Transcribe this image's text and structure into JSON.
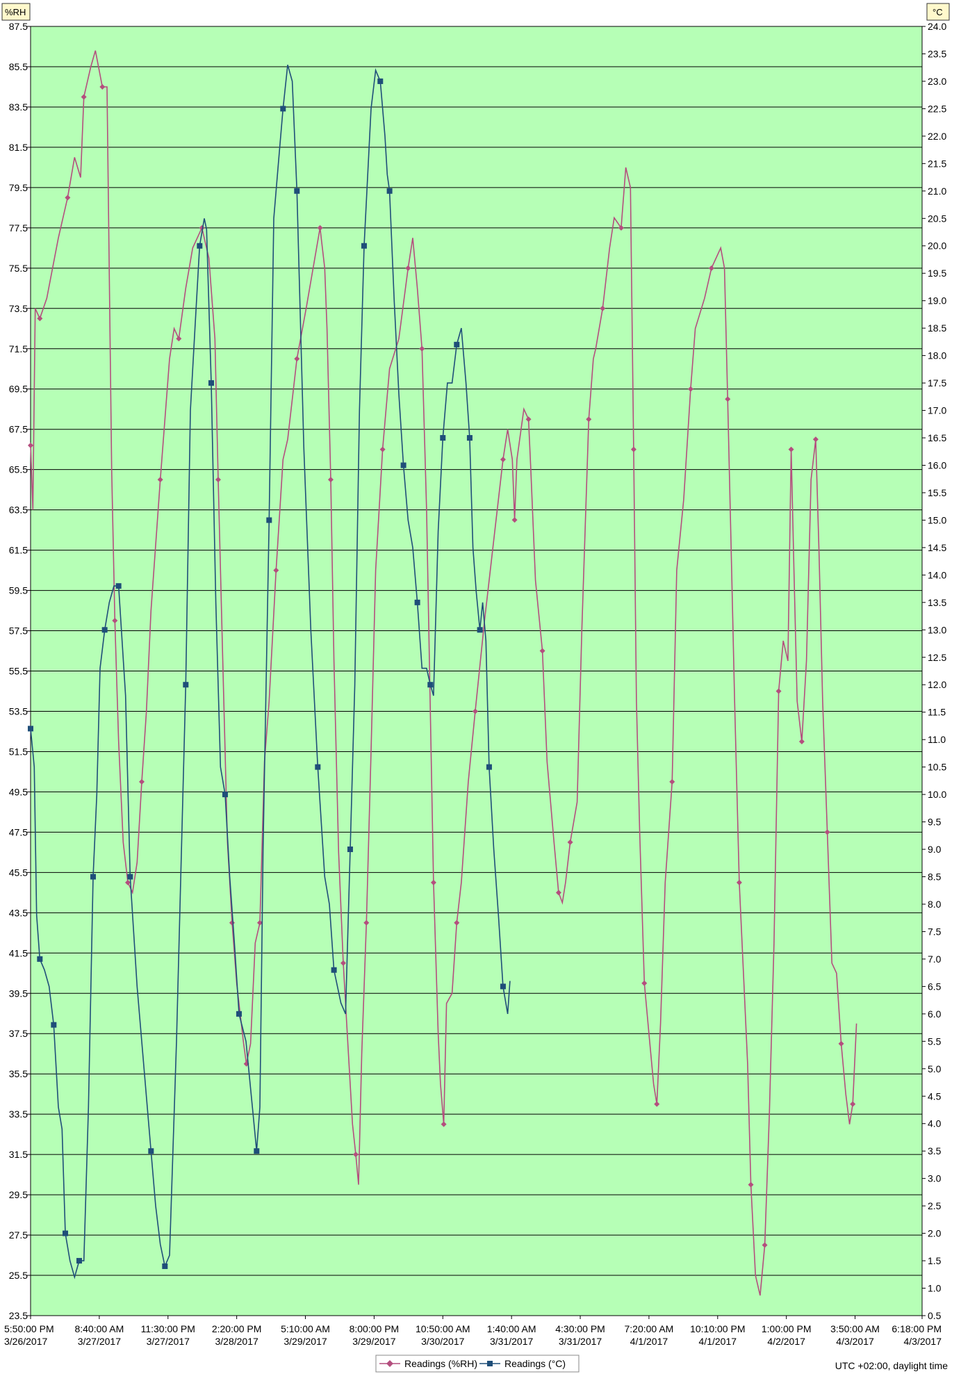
{
  "chart_data": {
    "type": "line",
    "left_axis": {
      "unit_label": "%RH",
      "min": 23.5,
      "max": 87.5,
      "step": 2,
      "ticks": [
        "87.5",
        "85.5",
        "83.5",
        "81.5",
        "79.5",
        "77.5",
        "75.5",
        "73.5",
        "71.5",
        "69.5",
        "67.5",
        "65.5",
        "63.5",
        "61.5",
        "59.5",
        "57.5",
        "55.5",
        "53.5",
        "51.5",
        "49.5",
        "47.5",
        "45.5",
        "43.5",
        "41.5",
        "39.5",
        "37.5",
        "35.5",
        "33.5",
        "31.5",
        "29.5",
        "27.5",
        "25.5",
        "23.5"
      ]
    },
    "right_axis": {
      "unit_label": "°C",
      "min": 0.5,
      "max": 24.0,
      "step": 0.5,
      "ticks": [
        "24.0",
        "23.5",
        "23.0",
        "22.5",
        "22.0",
        "21.5",
        "21.0",
        "20.5",
        "20.0",
        "19.5",
        "19.0",
        "18.5",
        "18.0",
        "17.5",
        "17.0",
        "16.5",
        "16.0",
        "15.5",
        "15.0",
        "14.5",
        "14.0",
        "13.5",
        "13.0",
        "12.5",
        "12.0",
        "11.5",
        "11.0",
        "10.5",
        "10.0",
        "9.5",
        "9.0",
        "8.5",
        "8.0",
        "7.5",
        "7.0",
        "6.5",
        "6.0",
        "5.5",
        "5.0",
        "4.5",
        "4.0",
        "3.5",
        "3.0",
        "2.5",
        "2.0",
        "1.5",
        "1.0",
        "0.5"
      ]
    },
    "x_axis": {
      "start": "3/26/2017 5:50:00 PM",
      "end": "4/3/2017 6:18:00 PM",
      "ticks": [
        {
          "time": "5:50:00 PM",
          "date": "3/26/2017",
          "hours": 0
        },
        {
          "time": "8:40:00 AM",
          "date": "3/27/2017",
          "hours": 14.833
        },
        {
          "time": "11:30:00 PM",
          "date": "3/27/2017",
          "hours": 29.667
        },
        {
          "time": "2:20:00 PM",
          "date": "3/28/2017",
          "hours": 44.5
        },
        {
          "time": "5:10:00 AM",
          "date": "3/29/2017",
          "hours": 59.333
        },
        {
          "time": "8:00:00 PM",
          "date": "3/29/2017",
          "hours": 74.167
        },
        {
          "time": "10:50:00 AM",
          "date": "3/30/2017",
          "hours": 89
        },
        {
          "time": "1:40:00 AM",
          "date": "3/31/2017",
          "hours": 103.833
        },
        {
          "time": "4:30:00 PM",
          "date": "3/31/2017",
          "hours": 118.667
        },
        {
          "time": "7:20:00 AM",
          "date": "4/1/2017",
          "hours": 133.5
        },
        {
          "time": "10:10:00 PM",
          "date": "4/1/2017",
          "hours": 148.333
        },
        {
          "time": "1:00:00 PM",
          "date": "4/2/2017",
          "hours": 163.167
        },
        {
          "time": "3:50:00 AM",
          "date": "4/3/2017",
          "hours": 178
        },
        {
          "time": "6:18:00 PM",
          "date": "4/3/2017",
          "hours": 192.467
        }
      ]
    },
    "grid": "horizontal",
    "series": [
      {
        "name": "Readings (%RH)",
        "axis": "left",
        "color": "#b44e7e",
        "marker": "diamond",
        "points": [
          [
            0,
            66.7
          ],
          [
            0.5,
            63.5
          ],
          [
            1,
            73.5
          ],
          [
            2,
            73
          ],
          [
            3.5,
            74
          ],
          [
            6,
            77
          ],
          [
            8,
            79
          ],
          [
            9.5,
            81
          ],
          [
            10.8,
            80
          ],
          [
            11.5,
            84
          ],
          [
            13,
            85.5
          ],
          [
            14,
            86.3
          ],
          [
            15.5,
            84.5
          ],
          [
            16.5,
            84.5
          ],
          [
            17.5,
            65.5
          ],
          [
            18.2,
            58
          ],
          [
            19,
            52
          ],
          [
            20,
            47
          ],
          [
            21,
            45
          ],
          [
            22,
            44.5
          ],
          [
            23,
            46
          ],
          [
            24,
            50
          ],
          [
            25,
            53.5
          ],
          [
            26,
            58.5
          ],
          [
            28,
            65
          ],
          [
            30,
            71
          ],
          [
            31,
            72.5
          ],
          [
            32,
            72
          ],
          [
            33.5,
            74.5
          ],
          [
            35,
            76.5
          ],
          [
            37,
            77.5
          ],
          [
            38.5,
            76
          ],
          [
            39.8,
            72
          ],
          [
            40.5,
            65
          ],
          [
            41.5,
            56
          ],
          [
            42.5,
            47
          ],
          [
            43.5,
            43
          ],
          [
            44.5,
            40
          ],
          [
            46,
            37
          ],
          [
            46.6,
            36
          ],
          [
            47.5,
            37
          ],
          [
            48.5,
            42
          ],
          [
            49.5,
            43
          ],
          [
            50.5,
            51
          ],
          [
            51.5,
            54
          ],
          [
            53,
            60.5
          ],
          [
            54.5,
            66
          ],
          [
            55.5,
            67
          ],
          [
            57.5,
            71
          ],
          [
            59.5,
            73.5
          ],
          [
            61,
            75.5
          ],
          [
            62.5,
            77.5
          ],
          [
            63.5,
            75.5
          ],
          [
            64,
            72.5
          ],
          [
            64.8,
            65
          ],
          [
            65.5,
            56
          ],
          [
            66.5,
            46.5
          ],
          [
            67.5,
            41
          ],
          [
            68.5,
            37
          ],
          [
            69.5,
            33
          ],
          [
            70.2,
            31.5
          ],
          [
            70.8,
            30
          ],
          [
            71.5,
            36.5
          ],
          [
            72.5,
            43
          ],
          [
            73.5,
            51.5
          ],
          [
            74.5,
            60.5
          ],
          [
            76,
            66.5
          ],
          [
            77.5,
            70.5
          ],
          [
            79.5,
            72
          ],
          [
            81.5,
            75.5
          ],
          [
            82.5,
            77
          ],
          [
            83.5,
            74.5
          ],
          [
            84.5,
            71.5
          ],
          [
            85.5,
            63.5
          ],
          [
            86.3,
            53.5
          ],
          [
            87,
            45
          ],
          [
            88,
            37.5
          ],
          [
            88.5,
            35
          ],
          [
            89.2,
            33
          ],
          [
            89.8,
            39
          ],
          [
            91,
            39.5
          ],
          [
            92,
            43
          ],
          [
            93,
            45
          ],
          [
            94.5,
            50
          ],
          [
            96,
            53.5
          ],
          [
            98,
            58
          ],
          [
            100.5,
            63
          ],
          [
            102,
            66
          ],
          [
            103,
            67.5
          ],
          [
            104,
            66
          ],
          [
            104.5,
            63
          ],
          [
            105,
            66
          ],
          [
            106.5,
            68.5
          ],
          [
            107.5,
            68
          ],
          [
            108,
            65.5
          ],
          [
            109,
            60
          ],
          [
            110.5,
            56.5
          ],
          [
            111.5,
            51
          ],
          [
            113,
            47
          ],
          [
            114,
            44.5
          ],
          [
            114.8,
            44
          ],
          [
            115.5,
            45
          ],
          [
            116.5,
            47
          ],
          [
            118,
            49
          ],
          [
            119,
            57.5
          ],
          [
            120.5,
            68
          ],
          [
            121.5,
            71
          ],
          [
            122,
            71.5
          ],
          [
            123.5,
            73.5
          ],
          [
            125,
            76.5
          ],
          [
            126,
            78
          ],
          [
            127.5,
            77.5
          ],
          [
            128.5,
            80.5
          ],
          [
            129.5,
            79.5
          ],
          [
            130.2,
            66.5
          ],
          [
            130.8,
            54
          ],
          [
            131.5,
            47.5
          ],
          [
            132.5,
            40
          ],
          [
            133.5,
            37.5
          ],
          [
            134.5,
            35
          ],
          [
            135.2,
            34
          ],
          [
            136,
            38
          ],
          [
            137,
            45
          ],
          [
            138.5,
            50
          ],
          [
            139.5,
            60.5
          ],
          [
            141,
            64
          ],
          [
            142.5,
            69.5
          ],
          [
            143.5,
            72.5
          ],
          [
            145.5,
            74
          ],
          [
            147,
            75.5
          ],
          [
            149,
            76.5
          ],
          [
            149.8,
            75.5
          ],
          [
            150.5,
            69
          ],
          [
            151.3,
            61
          ],
          [
            152,
            54
          ],
          [
            153,
            45
          ],
          [
            154,
            40
          ],
          [
            154.8,
            36
          ],
          [
            155.5,
            30
          ],
          [
            156.5,
            25.5
          ],
          [
            157.5,
            24.5
          ],
          [
            158.5,
            27
          ],
          [
            159.5,
            33.5
          ],
          [
            160.5,
            42
          ],
          [
            161.5,
            54.5
          ],
          [
            162.5,
            57
          ],
          [
            163.5,
            56
          ],
          [
            164.2,
            66.5
          ],
          [
            164.8,
            60.5
          ],
          [
            165.5,
            54
          ],
          [
            166.5,
            52
          ],
          [
            167.5,
            56
          ],
          [
            168.5,
            65
          ],
          [
            169.5,
            67
          ],
          [
            170.2,
            61.5
          ],
          [
            171,
            54
          ],
          [
            172,
            47.5
          ],
          [
            173,
            41
          ],
          [
            174,
            40.5
          ],
          [
            175,
            37
          ],
          [
            176,
            34.5
          ],
          [
            176.8,
            33
          ],
          [
            177.5,
            34
          ],
          [
            178.3,
            38
          ]
        ]
      },
      {
        "name": "Readings (°C)",
        "axis": "right",
        "color": "#1f4e79",
        "marker": "square",
        "points": [
          [
            0,
            11.2
          ],
          [
            0.8,
            10.5
          ],
          [
            1.3,
            7.8
          ],
          [
            2,
            7
          ],
          [
            3,
            6.8
          ],
          [
            4,
            6.5
          ],
          [
            5,
            5.8
          ],
          [
            6,
            4.3
          ],
          [
            6.8,
            3.9
          ],
          [
            7.5,
            2
          ],
          [
            8.5,
            1.5
          ],
          [
            9.5,
            1.2
          ],
          [
            10.5,
            1.5
          ],
          [
            11.5,
            1.5
          ],
          [
            12.5,
            4.3
          ],
          [
            13.5,
            8.5
          ],
          [
            14.3,
            10
          ],
          [
            15,
            12.3
          ],
          [
            16,
            13
          ],
          [
            17,
            13.5
          ],
          [
            18,
            13.8
          ],
          [
            19,
            13.8
          ],
          [
            19.6,
            13
          ],
          [
            20.5,
            11.8
          ],
          [
            21.5,
            8.5
          ],
          [
            23,
            6.5
          ],
          [
            24.5,
            5
          ],
          [
            26,
            3.5
          ],
          [
            27,
            2.5
          ],
          [
            28,
            1.8
          ],
          [
            29,
            1.4
          ],
          [
            30,
            1.6
          ],
          [
            31.5,
            5.5
          ],
          [
            33.5,
            12
          ],
          [
            34.5,
            17
          ],
          [
            35.5,
            18.5
          ],
          [
            36.5,
            20
          ],
          [
            37.5,
            20.5
          ],
          [
            38,
            20.3
          ],
          [
            39,
            17.5
          ],
          [
            40,
            13.5
          ],
          [
            41,
            10.5
          ],
          [
            42,
            10
          ],
          [
            43,
            8.5
          ],
          [
            44,
            7.3
          ],
          [
            45,
            6
          ],
          [
            46.5,
            5.5
          ],
          [
            48,
            4.2
          ],
          [
            48.8,
            3.5
          ],
          [
            49.5,
            4.3
          ],
          [
            50.2,
            9
          ],
          [
            51.5,
            15
          ],
          [
            52.5,
            20.5
          ],
          [
            53.5,
            21.5
          ],
          [
            54.5,
            22.5
          ],
          [
            55.5,
            23.3
          ],
          [
            56.5,
            23.0
          ],
          [
            57.5,
            21.0
          ],
          [
            59,
            16.3
          ],
          [
            60.5,
            13
          ],
          [
            62,
            10.5
          ],
          [
            63.5,
            8.5
          ],
          [
            64.5,
            8
          ],
          [
            65.5,
            6.8
          ],
          [
            67,
            6.2
          ],
          [
            68,
            6.0
          ],
          [
            69,
            9
          ],
          [
            70,
            12
          ],
          [
            71,
            17
          ],
          [
            72,
            20
          ],
          [
            73.5,
            22.5
          ],
          [
            74.5,
            23.2
          ],
          [
            75.5,
            23
          ],
          [
            76.5,
            22
          ],
          [
            77,
            21.3
          ],
          [
            77.5,
            21.0
          ],
          [
            78.5,
            19
          ],
          [
            79.5,
            17.3
          ],
          [
            80.5,
            16
          ],
          [
            81.5,
            15
          ],
          [
            82.5,
            14.5
          ],
          [
            83.5,
            13.5
          ],
          [
            84.5,
            12.3
          ],
          [
            85.5,
            12.3
          ],
          [
            86.3,
            12
          ],
          [
            87,
            11.8
          ],
          [
            88,
            14.8
          ],
          [
            89,
            16.5
          ],
          [
            90,
            17.5
          ],
          [
            91,
            17.5
          ],
          [
            92,
            18.2
          ],
          [
            93,
            18.5
          ],
          [
            94,
            17.5
          ],
          [
            94.8,
            16.5
          ],
          [
            95.5,
            14.5
          ],
          [
            96.2,
            13.7
          ],
          [
            97,
            13
          ],
          [
            97.6,
            13.5
          ],
          [
            98.3,
            12.8
          ],
          [
            99,
            10.5
          ],
          [
            100,
            9.0
          ],
          [
            101,
            7.8
          ],
          [
            102,
            6.5
          ],
          [
            103,
            6.0
          ],
          [
            103.5,
            6.6
          ]
        ]
      }
    ]
  },
  "legend": {
    "items": [
      "Readings (%RH)",
      "Readings (°C)"
    ],
    "position": "bottom-center"
  },
  "footnote": "UTC +02:00, daylight time"
}
